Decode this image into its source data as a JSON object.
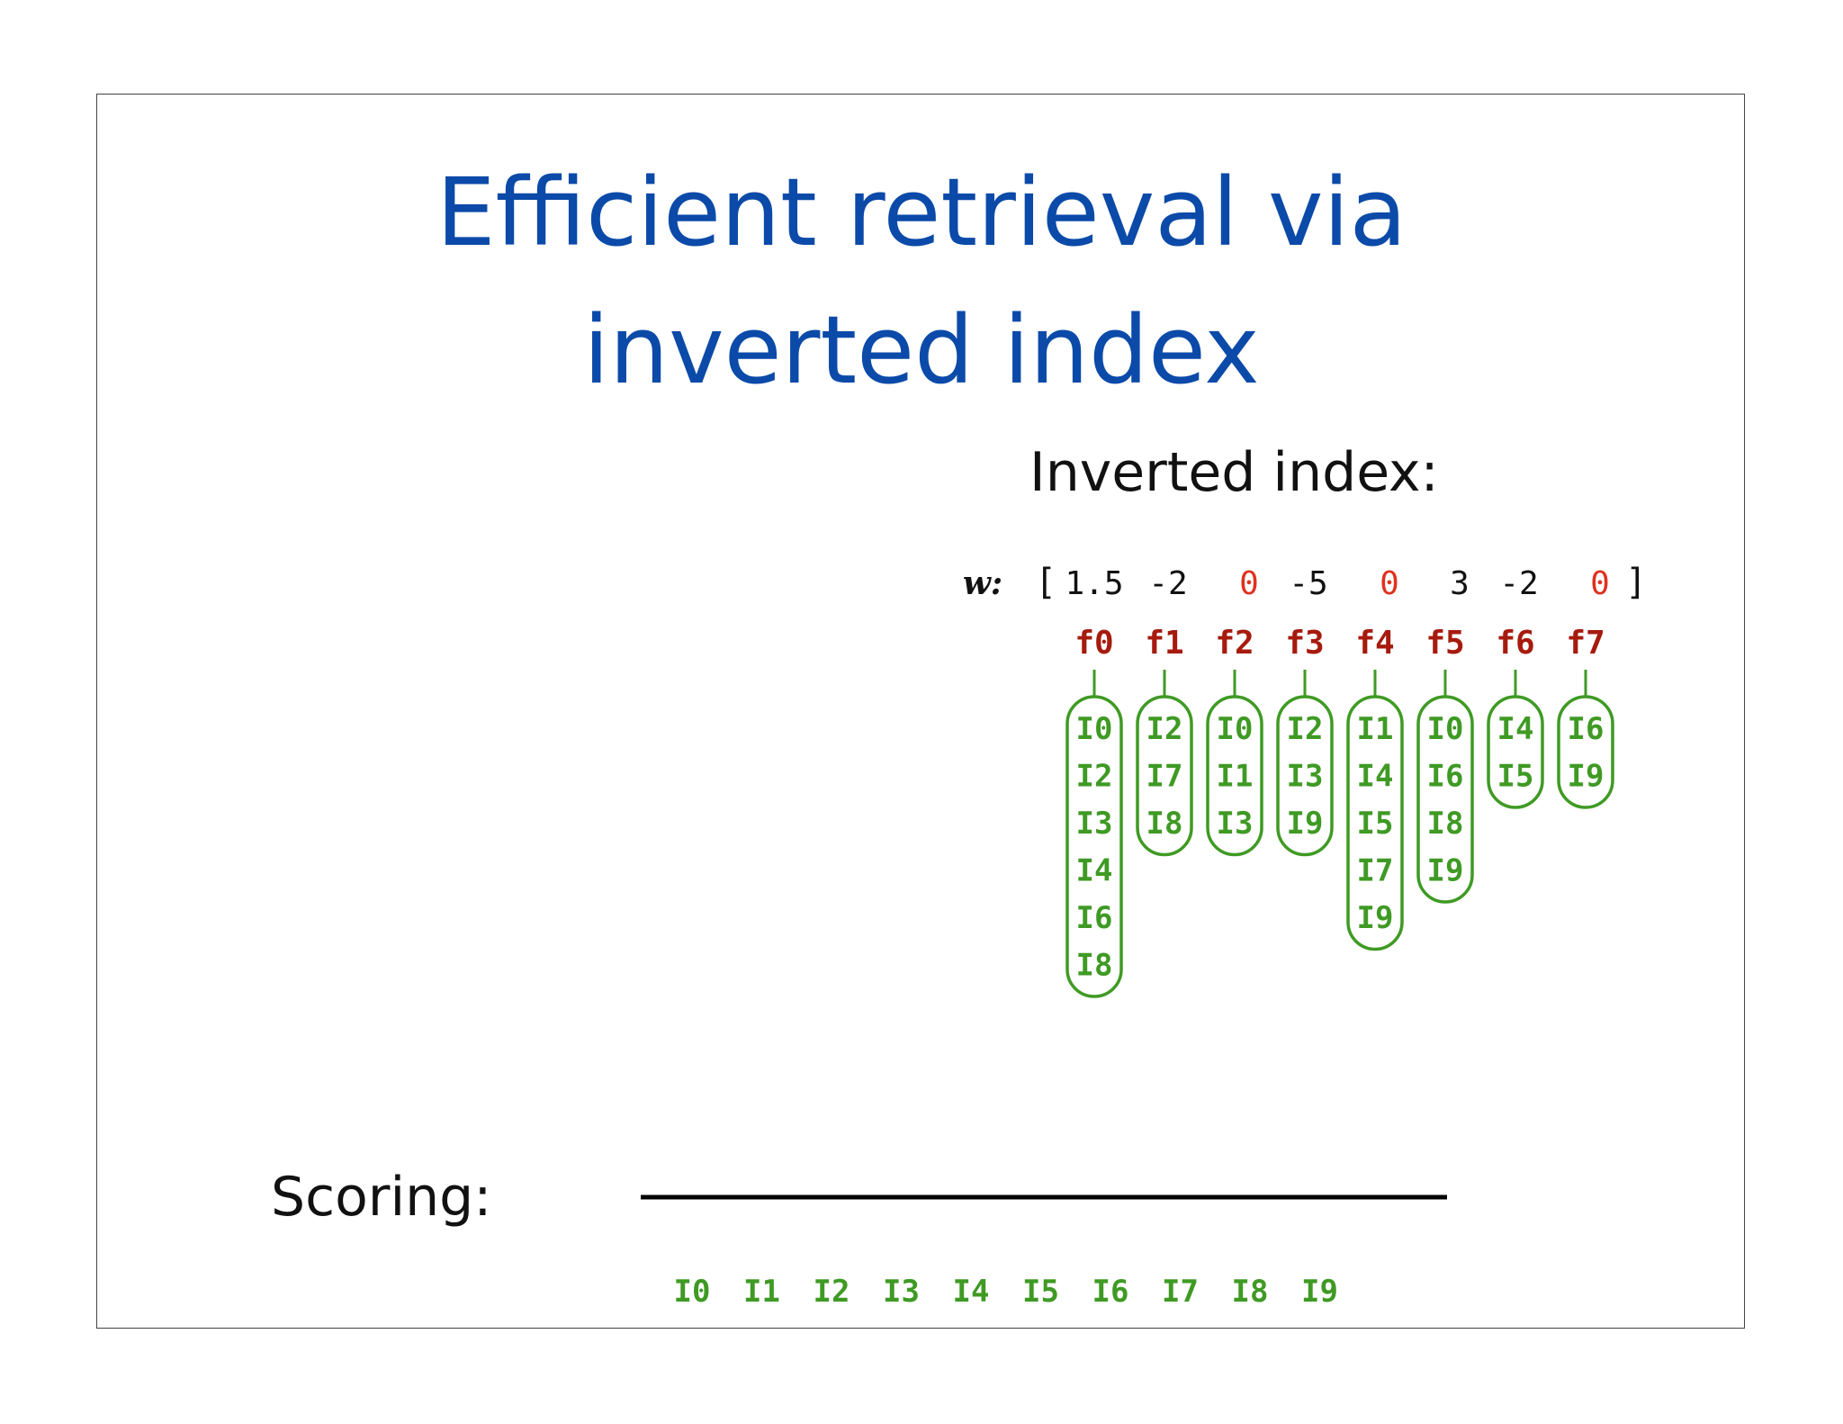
{
  "title": {
    "line1": "Efficient retrieval via",
    "line2": "inverted index"
  },
  "index_heading": "Inverted index:",
  "weights": {
    "label": "w:",
    "open_bracket": "[",
    "close_bracket": "]",
    "values": [
      "1.5",
      "-2",
      "0",
      "-5",
      "0",
      "3",
      "-2",
      "0"
    ]
  },
  "features": [
    {
      "name": "f0",
      "postings": [
        "I0",
        "I2",
        "I3",
        "I4",
        "I6",
        "I8"
      ]
    },
    {
      "name": "f1",
      "postings": [
        "I2",
        "I7",
        "I8"
      ]
    },
    {
      "name": "f2",
      "postings": [
        "I0",
        "I1",
        "I3"
      ]
    },
    {
      "name": "f3",
      "postings": [
        "I2",
        "I3",
        "I9"
      ]
    },
    {
      "name": "f4",
      "postings": [
        "I1",
        "I4",
        "I5",
        "I7",
        "I9"
      ]
    },
    {
      "name": "f5",
      "postings": [
        "I0",
        "I6",
        "I8",
        "I9"
      ]
    },
    {
      "name": "f6",
      "postings": [
        "I4",
        "I5"
      ]
    },
    {
      "name": "f7",
      "postings": [
        "I6",
        "I9"
      ]
    }
  ],
  "scoring": {
    "label": "Scoring:",
    "items": [
      "I0",
      "I1",
      "I2",
      "I3",
      "I4",
      "I5",
      "I6",
      "I7",
      "I8",
      "I9"
    ]
  },
  "colors": {
    "title": "#0b4aa8",
    "text": "#111111",
    "zero_weight": "#e0301e",
    "feature": "#a61b0e",
    "posting": "#3f9a24",
    "border": "#444444"
  }
}
